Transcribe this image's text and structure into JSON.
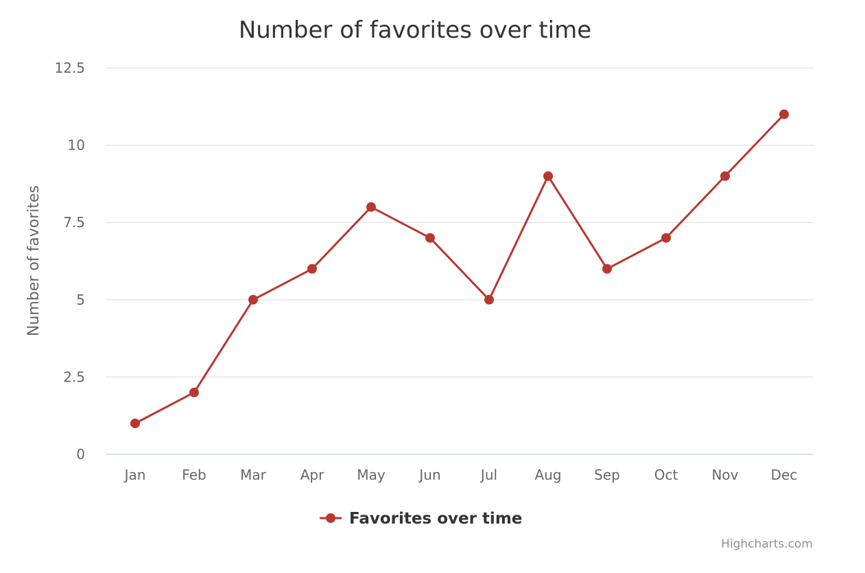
{
  "chart_data": {
    "type": "line",
    "title": "Number of favorites over time",
    "ylabel": "Number of favorites",
    "xlabel": "",
    "categories": [
      "Jan",
      "Feb",
      "Mar",
      "Apr",
      "May",
      "Jun",
      "Jul",
      "Aug",
      "Sep",
      "Oct",
      "Nov",
      "Dec"
    ],
    "ylim": [
      0,
      12.5
    ],
    "y_ticks": [
      "0",
      "2.5",
      "5",
      "7.5",
      "10",
      "12.5"
    ],
    "grid": true,
    "legend_position": "bottom-center",
    "series": [
      {
        "name": "Favorites over time",
        "color": "#b8372f",
        "values": [
          1,
          2,
          5,
          6,
          8,
          7,
          5,
          9,
          6,
          7,
          9,
          11
        ]
      }
    ]
  },
  "credits": "Highcharts.com"
}
